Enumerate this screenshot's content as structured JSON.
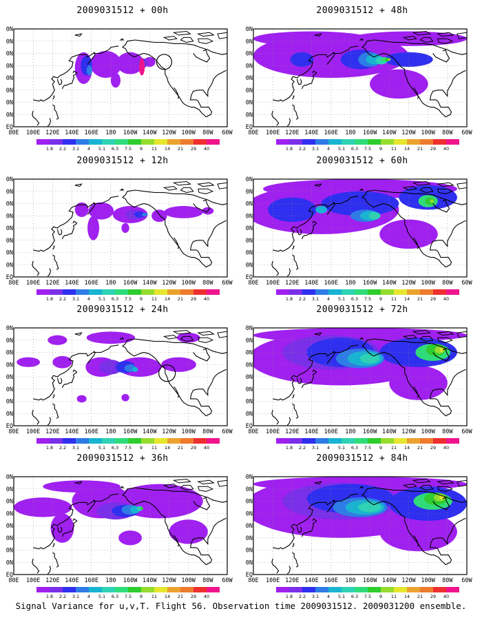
{
  "figure": {
    "caption": "Signal Variance for u,v,T. Flight 56. Observation time 2009031512. 2009031200 ensemble."
  },
  "colorbar": {
    "labels": [
      "1.8",
      "2.2",
      "3.1",
      "4",
      "5.1",
      "6.3",
      "7.5",
      "9",
      "11",
      "14",
      "21",
      "29",
      "40"
    ],
    "colors": [
      "#a020f0",
      "#7a2fe8",
      "#2f2ff0",
      "#2e7ce6",
      "#19b4d2",
      "#2fd2b4",
      "#2fdc7a",
      "#2ecd2e",
      "#96dc2e",
      "#e6e62e",
      "#eba22f",
      "#ee7a2e",
      "#ee2f2f",
      "#f0148c"
    ]
  },
  "axes": {
    "xticks": [
      "80E",
      "100E",
      "120E",
      "140E",
      "160E",
      "180",
      "160W",
      "140W",
      "120W",
      "100W",
      "80W",
      "60W"
    ],
    "yticks": [
      "EQ",
      "10N",
      "20N",
      "30N",
      "40N",
      "50N",
      "60N",
      "70N",
      "80N"
    ]
  },
  "chart_data": [
    {
      "type": "heatmap",
      "title": "2009031512 + 00h",
      "levels_visible": [
        "1.8",
        "2.2",
        "3.1",
        "4",
        "5.1"
      ],
      "highlight": "circle near 125W 53N"
    },
    {
      "type": "heatmap",
      "title": "2009031512 + 12h",
      "levels_visible": [
        "1.8",
        "2.2",
        "3.1",
        "4",
        "5.1"
      ]
    },
    {
      "type": "heatmap",
      "title": "2009031512 + 24h",
      "levels_visible": [
        "1.8",
        "2.2",
        "3.1",
        "4",
        "5.1",
        "6.3"
      ],
      "highlight": "circle near 122W 43N"
    },
    {
      "type": "heatmap",
      "title": "2009031512 + 36h",
      "levels_visible": [
        "1.8",
        "2.2",
        "3.1",
        "4",
        "5.1",
        "6.3",
        "7.5",
        "9"
      ]
    },
    {
      "type": "heatmap",
      "title": "2009031512 + 48h",
      "levels_visible": [
        "1.8",
        "2.2",
        "3.1",
        "4",
        "5.1",
        "6.3",
        "7.5",
        "9",
        "11"
      ]
    },
    {
      "type": "heatmap",
      "title": "2009031512 + 60h",
      "levels_visible": [
        "1.8",
        "2.2",
        "3.1",
        "4",
        "5.1",
        "6.3",
        "7.5",
        "9",
        "11"
      ]
    },
    {
      "type": "heatmap",
      "title": "2009031512 + 72h",
      "levels_visible": [
        "1.8",
        "2.2",
        "3.1",
        "4",
        "5.1",
        "6.3",
        "7.5",
        "9",
        "11",
        "14"
      ]
    },
    {
      "type": "heatmap",
      "title": "2009031512 + 84h",
      "levels_visible": [
        "1.8",
        "2.2",
        "3.1",
        "4",
        "5.1",
        "6.3",
        "7.5",
        "9",
        "11",
        "14"
      ]
    }
  ]
}
